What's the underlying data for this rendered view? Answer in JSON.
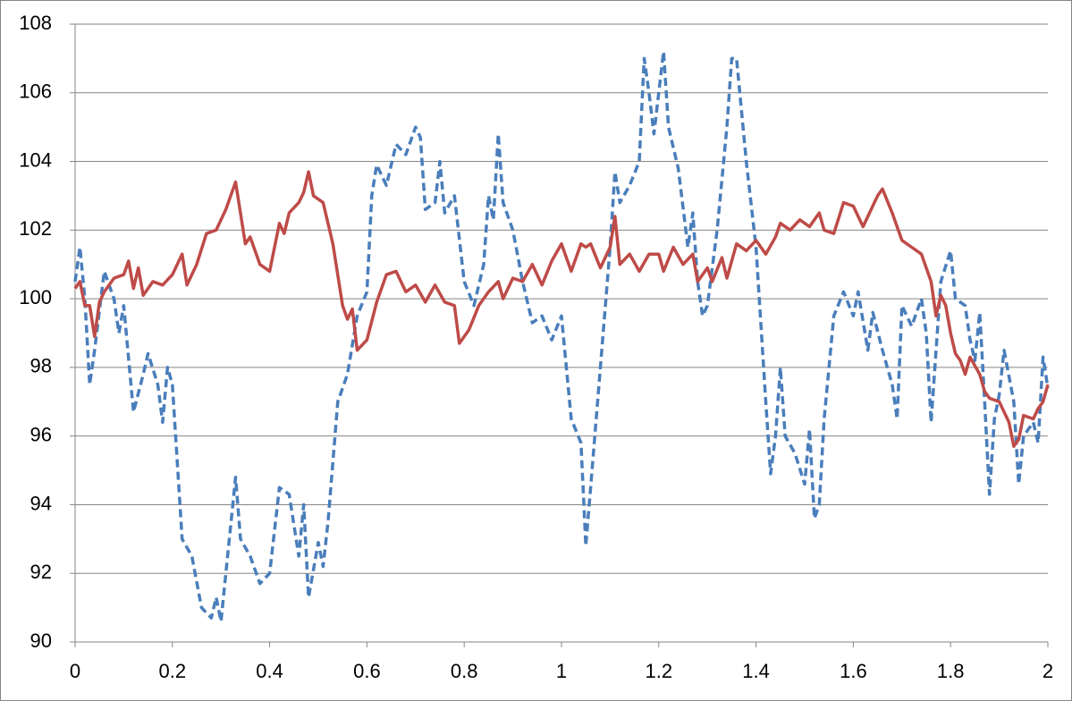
{
  "chart_data": {
    "type": "line",
    "xlim": [
      0,
      2
    ],
    "xticks": [
      0,
      0.2,
      0.4,
      0.6,
      0.8,
      1,
      1.2,
      1.4,
      1.6,
      1.8,
      2
    ],
    "ylim": [
      90,
      108
    ],
    "yticks": [
      90,
      92,
      94,
      96,
      98,
      100,
      102,
      104,
      106,
      108
    ],
    "grid": true,
    "series": [
      {
        "color": "#4a7ebb",
        "style": "dashed",
        "x": [
          0,
          0.01,
          0.02,
          0.03,
          0.04,
          0.06,
          0.08,
          0.09,
          0.1,
          0.12,
          0.14,
          0.15,
          0.17,
          0.18,
          0.19,
          0.2,
          0.22,
          0.24,
          0.26,
          0.28,
          0.29,
          0.3,
          0.31,
          0.33,
          0.34,
          0.36,
          0.38,
          0.4,
          0.42,
          0.44,
          0.46,
          0.47,
          0.48,
          0.5,
          0.51,
          0.52,
          0.54,
          0.56,
          0.58,
          0.6,
          0.61,
          0.62,
          0.64,
          0.66,
          0.68,
          0.7,
          0.71,
          0.72,
          0.74,
          0.75,
          0.76,
          0.78,
          0.8,
          0.82,
          0.84,
          0.85,
          0.86,
          0.87,
          0.88,
          0.9,
          0.92,
          0.94,
          0.96,
          0.98,
          1,
          1.02,
          1.04,
          1.05,
          1.06,
          1.08,
          1.1,
          1.11,
          1.12,
          1.14,
          1.16,
          1.17,
          1.18,
          1.19,
          1.21,
          1.22,
          1.24,
          1.26,
          1.27,
          1.28,
          1.29,
          1.3,
          1.32,
          1.34,
          1.35,
          1.36,
          1.38,
          1.4,
          1.42,
          1.43,
          1.44,
          1.45,
          1.46,
          1.48,
          1.5,
          1.51,
          1.52,
          1.53,
          1.54,
          1.56,
          1.58,
          1.6,
          1.61,
          1.63,
          1.64,
          1.66,
          1.68,
          1.69,
          1.7,
          1.71,
          1.72,
          1.74,
          1.75,
          1.76,
          1.78,
          1.8,
          1.81,
          1.83,
          1.84,
          1.85,
          1.86,
          1.87,
          1.88,
          1.89,
          1.9,
          1.91,
          1.93,
          1.94,
          1.95,
          1.97,
          1.98,
          1.99,
          2
        ],
        "values": [
          100.5,
          101.5,
          100,
          97.5,
          98.5,
          100.8,
          100,
          99,
          99.8,
          96.7,
          97.8,
          98.4,
          97.5,
          96.4,
          98,
          97.5,
          93,
          92.5,
          91,
          90.7,
          91.3,
          90.6,
          92,
          94.8,
          93,
          92.5,
          91.7,
          92,
          94.5,
          94.3,
          92.5,
          94,
          91.3,
          92.9,
          92.2,
          93.5,
          97,
          97.8,
          99.5,
          100.2,
          103,
          103.9,
          103.3,
          104.5,
          104.2,
          105,
          104.7,
          102.6,
          102.8,
          104,
          102.5,
          103,
          100.5,
          99.8,
          101,
          103,
          102.3,
          104.8,
          102.8,
          102,
          100.5,
          99.3,
          99.5,
          98.8,
          99.5,
          96.5,
          95.8,
          92.8,
          94.5,
          98,
          101.5,
          103.7,
          102.8,
          103.3,
          104,
          107,
          106,
          104.8,
          107.2,
          105,
          103.8,
          101.5,
          102.5,
          100.5,
          99.5,
          99.8,
          102,
          105,
          107,
          107,
          104,
          101.5,
          97,
          94.9,
          96,
          98,
          96,
          95.5,
          94.6,
          96.2,
          93.6,
          94,
          96.5,
          99.5,
          100.2,
          99.5,
          100.2,
          98.5,
          99.6,
          98.5,
          97.5,
          96.5,
          99.8,
          99.5,
          99.2,
          100,
          99,
          96.4,
          100.5,
          101.4,
          100,
          99.8,
          98.8,
          98.2,
          99.6,
          97,
          94.3,
          96.5,
          97.2,
          98.5,
          97,
          94.6,
          96,
          96.4,
          95.8,
          98.3,
          97.4
        ]
      },
      {
        "color": "#be4b48",
        "style": "solid",
        "x": [
          0,
          0.01,
          0.02,
          0.03,
          0.04,
          0.05,
          0.06,
          0.08,
          0.1,
          0.11,
          0.12,
          0.13,
          0.14,
          0.16,
          0.18,
          0.2,
          0.22,
          0.23,
          0.25,
          0.27,
          0.29,
          0.31,
          0.33,
          0.35,
          0.36,
          0.38,
          0.4,
          0.42,
          0.43,
          0.44,
          0.46,
          0.47,
          0.48,
          0.49,
          0.51,
          0.53,
          0.55,
          0.56,
          0.57,
          0.58,
          0.6,
          0.62,
          0.64,
          0.66,
          0.68,
          0.7,
          0.72,
          0.74,
          0.76,
          0.78,
          0.79,
          0.81,
          0.83,
          0.85,
          0.87,
          0.88,
          0.9,
          0.92,
          0.94,
          0.96,
          0.98,
          1,
          1.01,
          1.02,
          1.04,
          1.05,
          1.06,
          1.08,
          1.1,
          1.11,
          1.12,
          1.14,
          1.16,
          1.18,
          1.2,
          1.21,
          1.23,
          1.25,
          1.27,
          1.28,
          1.3,
          1.31,
          1.33,
          1.34,
          1.36,
          1.38,
          1.4,
          1.42,
          1.44,
          1.45,
          1.47,
          1.49,
          1.51,
          1.53,
          1.54,
          1.56,
          1.58,
          1.6,
          1.62,
          1.63,
          1.65,
          1.66,
          1.68,
          1.7,
          1.72,
          1.74,
          1.76,
          1.77,
          1.78,
          1.79,
          1.8,
          1.81,
          1.82,
          1.83,
          1.84,
          1.86,
          1.87,
          1.88,
          1.9,
          1.92,
          1.93,
          1.94,
          1.95,
          1.97,
          1.98,
          1.99,
          2
        ],
        "values": [
          100.3,
          100.5,
          99.8,
          99.8,
          98.9,
          99.9,
          100.2,
          100.6,
          100.7,
          101.1,
          100.3,
          100.9,
          100.1,
          100.5,
          100.4,
          100.7,
          101.3,
          100.4,
          101,
          101.9,
          102,
          102.6,
          103.4,
          101.6,
          101.8,
          101,
          100.8,
          102.2,
          101.9,
          102.5,
          102.8,
          103.1,
          103.7,
          103,
          102.8,
          101.6,
          99.8,
          99.4,
          99.7,
          98.5,
          98.8,
          99.9,
          100.7,
          100.8,
          100.2,
          100.4,
          99.9,
          100.4,
          99.9,
          99.8,
          98.7,
          99.1,
          99.8,
          100.2,
          100.5,
          100,
          100.6,
          100.5,
          101,
          100.4,
          101.1,
          101.6,
          101.2,
          100.8,
          101.6,
          101.5,
          101.6,
          100.9,
          101.5,
          102.4,
          101,
          101.3,
          100.8,
          101.3,
          101.3,
          100.8,
          101.5,
          101,
          101.3,
          100.5,
          100.9,
          100.5,
          101.2,
          100.6,
          101.6,
          101.4,
          101.7,
          101.3,
          101.8,
          102.2,
          102,
          102.3,
          102.1,
          102.5,
          102,
          101.9,
          102.8,
          102.7,
          102.1,
          102.4,
          103,
          103.2,
          102.5,
          101.7,
          101.5,
          101.3,
          100.5,
          99.5,
          100.1,
          99.8,
          99,
          98.4,
          98.2,
          97.8,
          98.3,
          97.8,
          97.3,
          97.1,
          97,
          96.4,
          95.7,
          95.9,
          96.6,
          96.5,
          96.8,
          97,
          97.5
        ]
      }
    ]
  }
}
